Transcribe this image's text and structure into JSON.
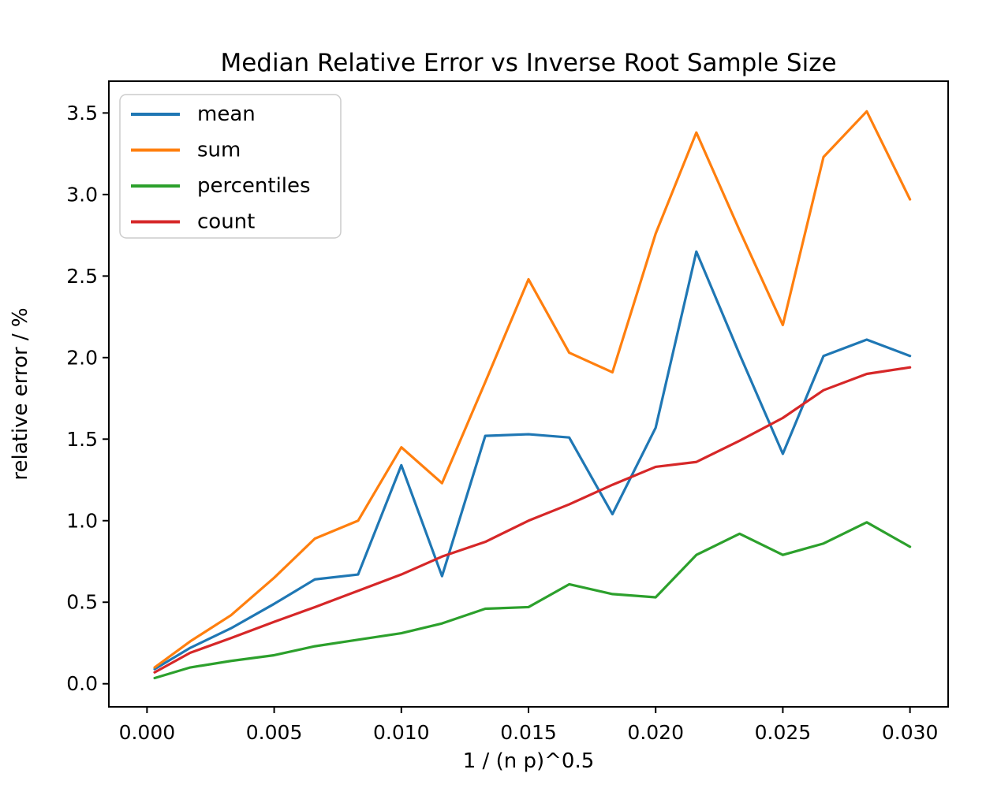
{
  "chart_data": {
    "type": "line",
    "title": "Median Relative Error vs Inverse Root Sample Size",
    "xlabel": "1 / (n p)^0.5",
    "ylabel": "relative error / %",
    "x_tick_labels": [
      "0.000",
      "0.005",
      "0.010",
      "0.015",
      "0.020",
      "0.025",
      "0.030"
    ],
    "x_tick_values": [
      0.0,
      0.005,
      0.01,
      0.015,
      0.02,
      0.025,
      0.03
    ],
    "y_tick_labels": [
      "0.0",
      "0.5",
      "1.0",
      "1.5",
      "2.0",
      "2.5",
      "3.0",
      "3.5"
    ],
    "y_tick_values": [
      0.0,
      0.5,
      1.0,
      1.5,
      2.0,
      2.5,
      3.0,
      3.5
    ],
    "xlim": [
      -0.0015,
      0.0315
    ],
    "ylim": [
      -0.1415,
      3.695
    ],
    "grid": false,
    "legend_position": "upper left",
    "background": "#ffffff",
    "spine_color": "#000000",
    "legend_border_color": "#cccccc",
    "x": [
      0.0003,
      0.0017,
      0.0033,
      0.005,
      0.0066,
      0.0083,
      0.01,
      0.0116,
      0.0133,
      0.015,
      0.0166,
      0.0183,
      0.02,
      0.0216,
      0.0233,
      0.025,
      0.0266,
      0.0283,
      0.03
    ],
    "series": [
      {
        "name": "mean",
        "color": "#1f77b4",
        "values": [
          0.09,
          0.22,
          0.34,
          0.49,
          0.64,
          0.67,
          1.34,
          0.66,
          1.52,
          1.53,
          1.51,
          1.04,
          1.57,
          2.65,
          2.02,
          1.41,
          2.01,
          2.11,
          2.01
        ]
      },
      {
        "name": "sum",
        "color": "#ff7f0e",
        "values": [
          0.1,
          0.26,
          0.42,
          0.65,
          0.89,
          1.0,
          1.45,
          1.23,
          1.85,
          2.48,
          2.03,
          1.91,
          2.76,
          3.38,
          2.78,
          2.2,
          3.23,
          3.51,
          2.97
        ]
      },
      {
        "name": "percentiles",
        "color": "#2ca02c",
        "values": [
          0.035,
          0.1,
          0.14,
          0.175,
          0.23,
          0.27,
          0.31,
          0.37,
          0.46,
          0.47,
          0.61,
          0.55,
          0.53,
          0.79,
          0.92,
          0.79,
          0.86,
          0.99,
          0.84
        ]
      },
      {
        "name": "count",
        "color": "#d62728",
        "values": [
          0.07,
          0.19,
          0.28,
          0.38,
          0.47,
          0.57,
          0.67,
          0.78,
          0.87,
          1.0,
          1.1,
          1.22,
          1.33,
          1.36,
          1.49,
          1.63,
          1.8,
          1.9,
          1.94
        ]
      }
    ]
  }
}
